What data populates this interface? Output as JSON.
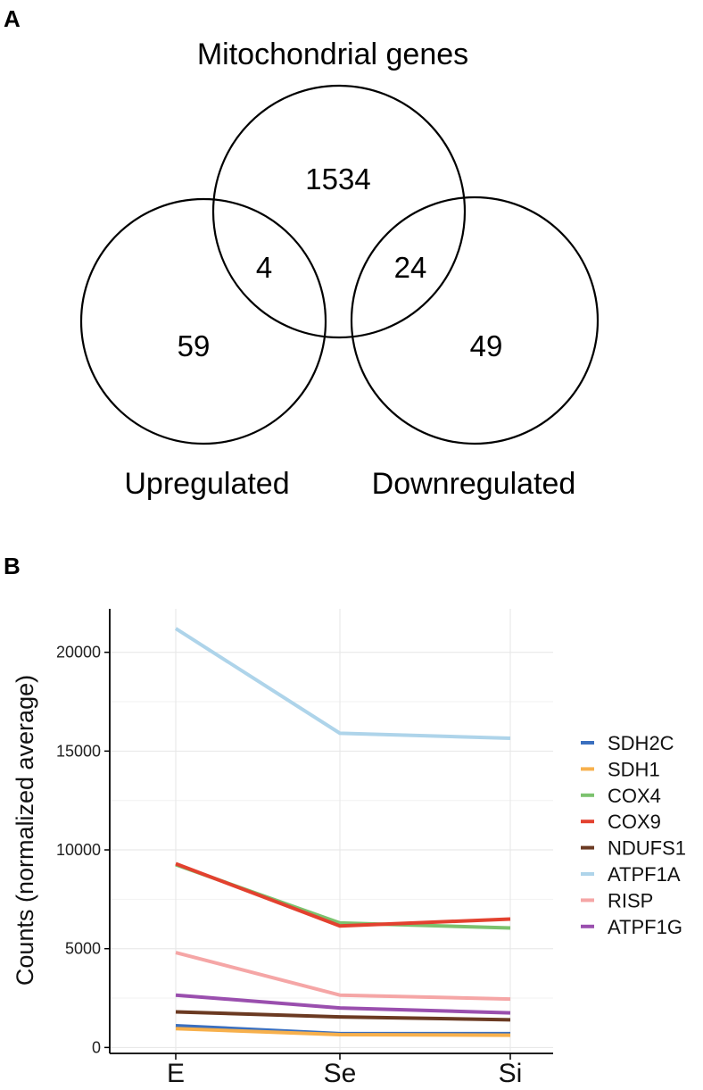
{
  "panel_a": {
    "label": "A",
    "title": "Mitochondrial genes",
    "sets": [
      "Mitochondrial genes",
      "Upregulated",
      "Downregulated"
    ],
    "labels": {
      "upregulated": "Upregulated",
      "downregulated": "Downregulated"
    },
    "counts": {
      "mito_only": "1534",
      "mito_up": "4",
      "mito_down": "24",
      "up_only": "59",
      "down_only": "49"
    }
  },
  "panel_b": {
    "label": "B"
  },
  "chart_data": {
    "type": "line",
    "title": "",
    "xlabel": "",
    "ylabel": "Counts (normalized average)",
    "categories": [
      "E",
      "Se",
      "Si"
    ],
    "ylim": [
      -300,
      22200
    ],
    "yticks": [
      0,
      5000,
      10000,
      15000,
      20000
    ],
    "ytick_labels": [
      "0",
      "5000",
      "10000",
      "15000",
      "20000"
    ],
    "grid": true,
    "legend": "right",
    "series": [
      {
        "name": "SDH2C",
        "color": "#3a6fbf",
        "values": [
          1100,
          700,
          700
        ]
      },
      {
        "name": "SDH1",
        "color": "#f7b04c",
        "values": [
          950,
          650,
          620
        ]
      },
      {
        "name": "COX4",
        "color": "#7cc26e",
        "values": [
          9250,
          6300,
          6050
        ]
      },
      {
        "name": "COX9",
        "color": "#e3412f",
        "values": [
          9300,
          6150,
          6500
        ]
      },
      {
        "name": "NDUFS1",
        "color": "#6b3a22",
        "values": [
          1800,
          1550,
          1400
        ]
      },
      {
        "name": "ATPF1A",
        "color": "#aed4ea",
        "values": [
          21200,
          15900,
          15650
        ]
      },
      {
        "name": "RISP",
        "color": "#f5a6a6",
        "values": [
          4800,
          2650,
          2450
        ]
      },
      {
        "name": "ATPF1G",
        "color": "#9a4fae",
        "values": [
          2650,
          2000,
          1750
        ]
      }
    ]
  }
}
